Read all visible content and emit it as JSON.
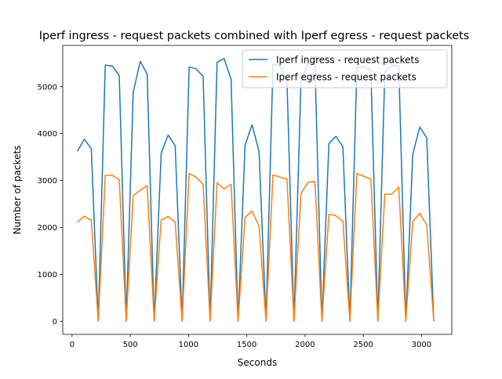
{
  "chart_data": {
    "type": "line",
    "title": "Iperf ingress - request packets combined with Iperf egress - request packets",
    "xlabel": "Seconds",
    "ylabel": "Number of packets",
    "xlim": [
      -80,
      3260
    ],
    "ylim": [
      -280,
      5880
    ],
    "xticks": [
      0,
      500,
      1000,
      1500,
      2000,
      2500,
      3000
    ],
    "xtick_labels": [
      "0",
      "500",
      "1000",
      "1500",
      "2000",
      "2500",
      "3000"
    ],
    "yticks": [
      0,
      1000,
      2000,
      3000,
      4000,
      5000
    ],
    "ytick_labels": [
      "0",
      "1000",
      "2000",
      "3000",
      "4000",
      "5000"
    ],
    "grid": false,
    "legend_position": "upper right",
    "series": [
      {
        "name": "Iperf ingress - request packets",
        "color": "#1f77b4",
        "x": [
          45,
          105,
          165,
          225,
          285,
          345,
          405,
          465,
          525,
          585,
          645,
          705,
          765,
          825,
          885,
          945,
          1005,
          1065,
          1125,
          1185,
          1245,
          1305,
          1365,
          1425,
          1485,
          1545,
          1605,
          1665,
          1725,
          1785,
          1845,
          1905,
          1965,
          2025,
          2085,
          2145,
          2205,
          2265,
          2325,
          2385,
          2445,
          2505,
          2565,
          2625,
          2685,
          2745,
          2805,
          2865,
          2925,
          2985,
          3045,
          3105
        ],
        "values": [
          3620,
          3880,
          3680,
          0,
          5460,
          5440,
          5240,
          0,
          4880,
          5540,
          5270,
          0,
          3580,
          3970,
          3740,
          0,
          5420,
          5380,
          5220,
          0,
          5520,
          5600,
          5160,
          0,
          3750,
          4190,
          3620,
          0,
          5480,
          5440,
          5120,
          0,
          5100,
          5500,
          5500,
          0,
          3790,
          3940,
          3720,
          0,
          5400,
          5430,
          5360,
          0,
          5320,
          5450,
          5440,
          0,
          3560,
          4140,
          3910,
          0
        ]
      },
      {
        "name": "Iperf egress - request packets",
        "color": "#ff7f0e",
        "x": [
          45,
          105,
          165,
          225,
          285,
          345,
          405,
          465,
          525,
          585,
          645,
          705,
          765,
          825,
          885,
          945,
          1005,
          1065,
          1125,
          1185,
          1245,
          1305,
          1365,
          1425,
          1485,
          1545,
          1605,
          1665,
          1725,
          1785,
          1845,
          1905,
          1965,
          2025,
          2085,
          2145,
          2205,
          2265,
          2325,
          2385,
          2445,
          2505,
          2565,
          2625,
          2685,
          2745,
          2805,
          2865,
          2925,
          2985,
          3045,
          3105
        ],
        "values": [
          2110,
          2240,
          2150,
          0,
          3110,
          3110,
          3020,
          0,
          2680,
          2790,
          2890,
          0,
          2160,
          2230,
          2110,
          0,
          3150,
          3070,
          2920,
          0,
          2950,
          2820,
          2920,
          0,
          2210,
          2350,
          2030,
          0,
          3120,
          3070,
          3030,
          0,
          2720,
          2960,
          2980,
          0,
          2280,
          2250,
          2130,
          0,
          3150,
          3090,
          3030,
          0,
          2710,
          2710,
          2860,
          0,
          2130,
          2300,
          2050,
          0
        ]
      }
    ]
  }
}
